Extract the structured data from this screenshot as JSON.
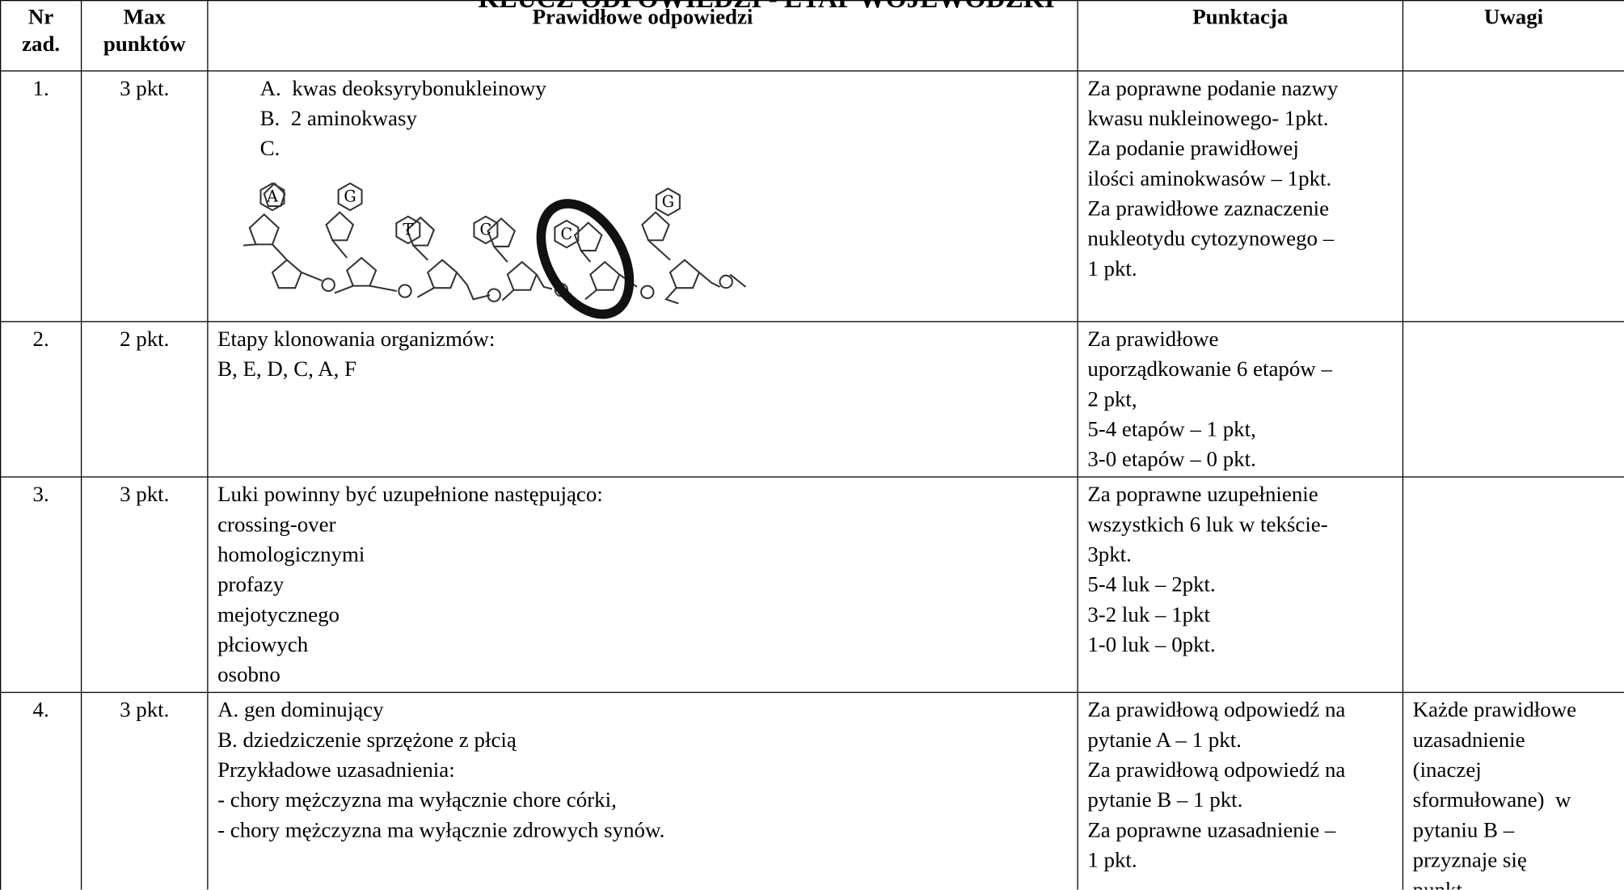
{
  "title": "KLUCZ ODPOWIEDZI - ETAP WOJEWÓDZKI",
  "table": {
    "header": [
      [
        "Nr",
        "zad."
      ],
      [
        "Max",
        "punktów"
      ],
      [
        "Prawidłowe odpowiedzi"
      ],
      [
        "Punktacja"
      ],
      [
        "Uwagi"
      ]
    ],
    "rows": [
      {
        "nr": "1.",
        "max": "3 pkt.",
        "answer": [
          "A.  kwas deoksyrybonukleinowy",
          "B.  2 aminokwasy",
          "C."
        ],
        "diagram_labels": [
          "A",
          "G",
          "T",
          "C",
          "C",
          "G"
        ],
        "scoring": [
          "Za poprawne podanie nazwy",
          "kwasu nukleinowego- 1pkt.",
          "Za podanie prawidłowej",
          "ilości aminokwasów – 1pkt.",
          "Za prawidłowe zaznaczenie",
          "nukleotydu cytozynowego –",
          "1 pkt."
        ]
      },
      {
        "nr": "2.",
        "max": "2 pkt.",
        "answer": [
          "Etapy klonowania organizmów:",
          "B, E, D, C, A, F"
        ],
        "scoring": [
          "Za prawidłowe",
          "uporządkowanie 6 etapów –",
          "2 pkt,",
          "5-4 etapów – 1 pkt,",
          "3-0 etapów – 0 pkt."
        ]
      },
      {
        "nr": "3.",
        "max": "3 pkt.",
        "answer": [
          "Luki powinny być uzupełnione następująco:",
          "crossing-over",
          "homologicznymi",
          "profazy",
          "mejotycznego",
          "płciowych",
          "osobno"
        ],
        "scoring": [
          "Za poprawne uzupełnienie",
          "wszystkich 6 luk w tekście-",
          "3pkt.",
          "5-4 luk – 2pkt.",
          "3-2 luk – 1pkt",
          "1-0 luk – 0pkt."
        ]
      },
      {
        "nr": "4.",
        "max": "3 pkt.",
        "answer": [
          "A. gen dominujący",
          "B. dziedziczenie sprzężone z płcią",
          "Przykładowe uzasadnienia:",
          "- chory mężczyzna ma wyłącznie chore córki,",
          "- chory mężczyzna ma wyłącznie zdrowych synów."
        ],
        "scoring": [
          "Za prawidłową odpowiedź na",
          "pytanie A – 1 pkt.",
          "Za prawidłową odpowiedź na",
          "pytanie B – 1 pkt.",
          "Za poprawne uzasadnienie –",
          "1 pkt."
        ],
        "notes": [
          "Każde prawidłowe",
          "uzasadnienie",
          "(inaczej",
          "sformułowane)  w",
          "pytaniu B –",
          "przyznaje się",
          "punkt."
        ]
      }
    ]
  }
}
